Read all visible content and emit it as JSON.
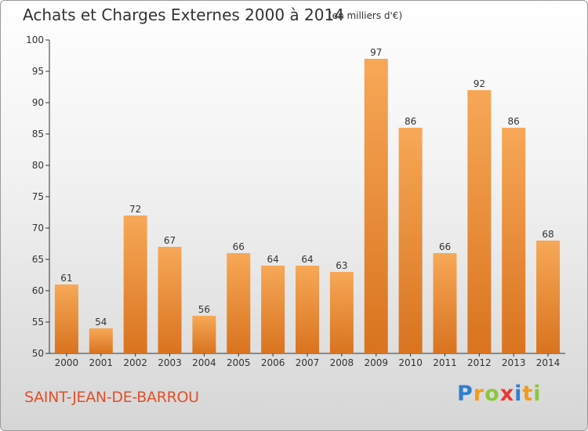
{
  "title": "Achats et Charges Externes 2000 à 2014",
  "subtitle": "(en milliers d'€)",
  "commune": "SAINT-JEAN-DE-BARROU",
  "logo": {
    "letters": [
      {
        "ch": "P",
        "color": "#2f7fd0"
      },
      {
        "ch": "r",
        "color": "#f39a1e"
      },
      {
        "ch": "o",
        "color": "#8cc63e"
      },
      {
        "ch": "x",
        "color": "#e93a2f"
      },
      {
        "ch": "i",
        "color": "#2f7fd0"
      },
      {
        "ch": "t",
        "color": "#f39a1e"
      },
      {
        "ch": "i",
        "color": "#8cc63e"
      }
    ]
  },
  "chart_data": {
    "type": "bar",
    "categories": [
      "2000",
      "2001",
      "2002",
      "2003",
      "2004",
      "2005",
      "2006",
      "2007",
      "2008",
      "2009",
      "2010",
      "2011",
      "2012",
      "2013",
      "2014"
    ],
    "values": [
      61,
      54,
      72,
      67,
      56,
      66,
      64,
      64,
      63,
      97,
      86,
      66,
      92,
      86,
      68
    ],
    "ylim": [
      50,
      100
    ],
    "yticks": [
      50,
      55,
      60,
      65,
      70,
      75,
      80,
      85,
      90,
      95,
      100
    ],
    "grid": false,
    "bar_color_top": "#f7a857",
    "bar_color_bottom": "#d9731f"
  }
}
